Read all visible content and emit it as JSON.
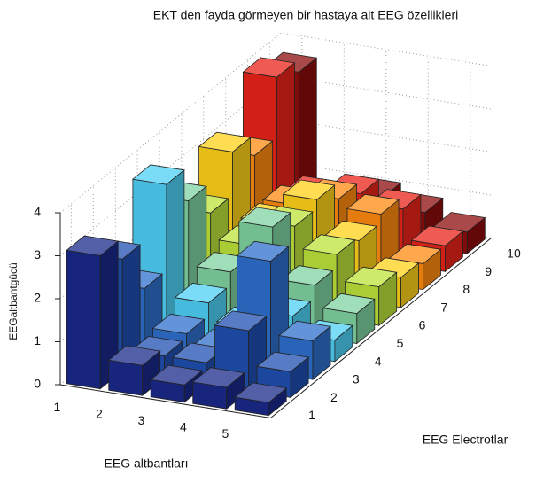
{
  "chart_data": {
    "type": "bar3d",
    "title": "EKT den fayda görmeyen bir hastaya ait EEG özellikleri",
    "xlabel": "EEG altbantları",
    "ylabel": "EEG  Electrotlar",
    "zlabel": "EEGaltbantgücü",
    "subbands": [
      1,
      2,
      3,
      4,
      5
    ],
    "electrodes": [
      1,
      2,
      3,
      4,
      5,
      6,
      7,
      8,
      9,
      10
    ],
    "values": [
      [
        3.1,
        0.7,
        0.4,
        0.5,
        0.3
      ],
      [
        2.6,
        0.5,
        0.5,
        1.4,
        0.6
      ],
      [
        1.5,
        0.6,
        0.4,
        2.6,
        0.9
      ],
      [
        3.5,
        0.9,
        0.5,
        0.9,
        0.5
      ],
      [
        2.7,
        1.2,
        2.4,
        1.2,
        0.7
      ],
      [
        2.0,
        1.4,
        2.0,
        1.5,
        0.9
      ],
      [
        3.0,
        1.5,
        2.2,
        1.4,
        0.7
      ],
      [
        2.5,
        1.5,
        1.8,
        1.6,
        0.6
      ],
      [
        3.9,
        1.3,
        1.5,
        1.3,
        0.6
      ],
      [
        3.6,
        0.8,
        1.0,
        0.8,
        0.5
      ]
    ],
    "colors": [
      "#1a2a8a",
      "#1f4fb0",
      "#2f6fcc",
      "#4fd0f5",
      "#7fd3a0",
      "#bde33a",
      "#ffd21a",
      "#ff8a10",
      "#ea2418",
      "#8e0c0c"
    ],
    "zlim": [
      0,
      4
    ],
    "zticks": [
      0,
      1,
      2,
      3,
      4
    ],
    "grid": true
  }
}
